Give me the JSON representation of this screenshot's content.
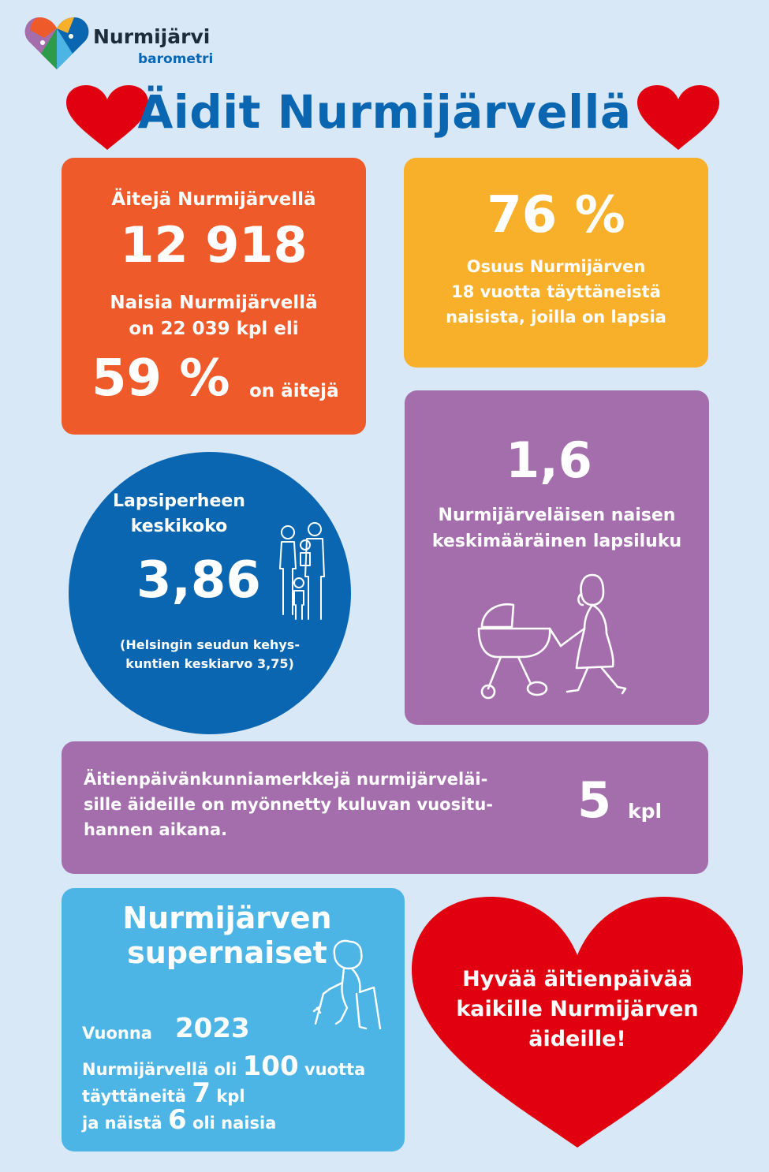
{
  "logo": {
    "name": "Nurmijärvi",
    "sub": "barometri"
  },
  "title": "Äidit Nurmijärvellä",
  "mothers_card": {
    "label": "Äitejä Nurmijärvellä",
    "count": "12 918",
    "women_line1": "Naisia Nurmijärvellä",
    "women_line2": "on 22 039 kpl eli",
    "percent": "59 %",
    "percent_suffix": "on äitejä"
  },
  "share_card": {
    "percent": "76 %",
    "line1": "Osuus Nurmijärven",
    "line2": "18 vuotta täyttäneistä",
    "line3": "naisista, joilla on lapsia"
  },
  "children_card": {
    "value": "1,6",
    "line1": "Nurmijärveläisen naisen",
    "line2": "keskimääräinen lapsiluku"
  },
  "family_circle": {
    "line1": "Lapsiperheen",
    "line2": "keskikoko",
    "value": "3,86",
    "note1": "(Helsingin seudun kehys-",
    "note2": "kuntien keskiarvo 3,75)"
  },
  "medals_card": {
    "line1": "Äitienpäivänkunniamerkkejä nurmijärveläi-",
    "line2": "sille äideille on myönnetty kuluvan vuositu-",
    "line3": "hannen aikana.",
    "value": "5",
    "unit": "kpl"
  },
  "super_card": {
    "title1": "Nurmijärven",
    "title2": "supernaiset",
    "vuonna": "Vuonna",
    "year": "2023",
    "l2a": "Nurmijärvellä oli",
    "l2b": "100",
    "l2c": "vuotta",
    "l3a": "täyttäneitä",
    "l3b": "7",
    "l3c": "kpl",
    "l4a": "ja näistä",
    "l4b": "6",
    "l4c": "oli naisia"
  },
  "greeting": {
    "line1": "Hyvää äitienpäivää",
    "line2": "kaikille Nurmijärven",
    "line3": "äideille!"
  },
  "colors": {
    "background": "#d9e8f6",
    "title_blue": "#0a66b0",
    "orange": "#ee5a2a",
    "yellow": "#f8b02b",
    "purple": "#a46ead",
    "light_blue": "#4db5e6",
    "heart_red": "#e0000f"
  }
}
